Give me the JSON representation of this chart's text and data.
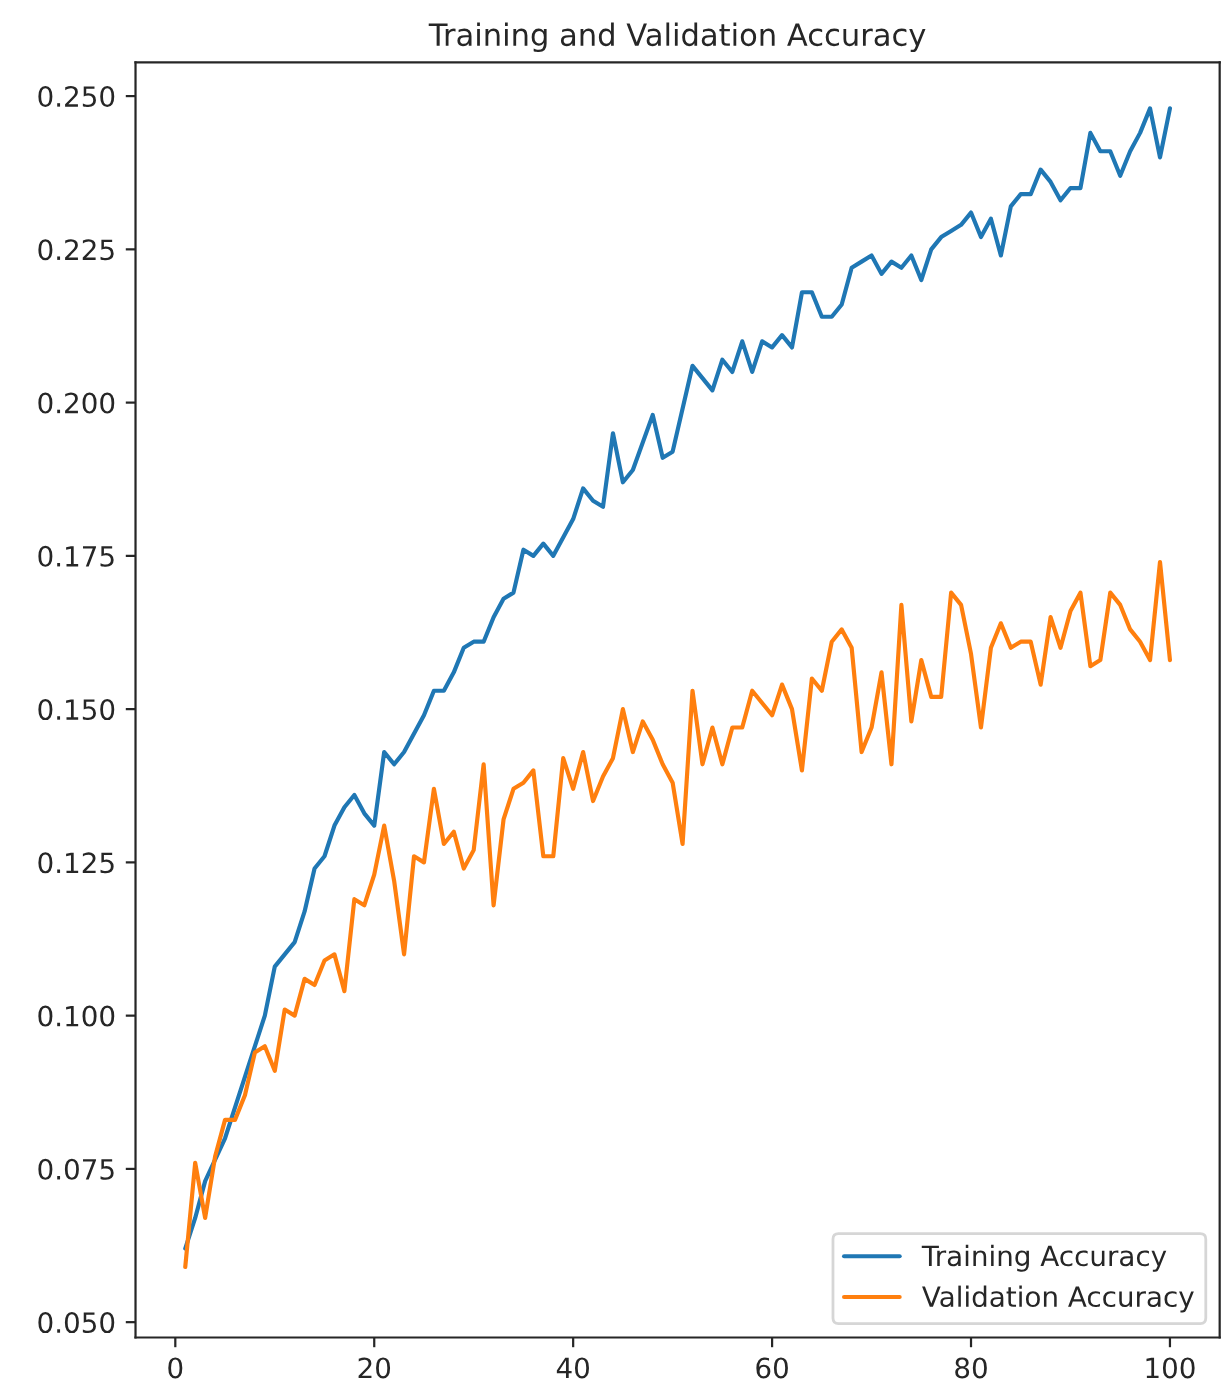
{
  "chart_data": {
    "type": "line",
    "title": "Training and Validation Accuracy",
    "series": [
      {
        "name": "Training Accuracy",
        "color": "#1f77b4",
        "x": [
          1,
          2,
          3,
          5,
          7,
          9,
          10,
          12,
          13,
          14,
          15,
          16,
          17,
          18,
          19,
          20,
          21,
          22,
          23,
          25,
          26,
          27,
          28,
          29,
          30,
          31,
          32,
          33,
          34,
          35,
          36,
          37,
          38,
          40,
          41,
          42,
          43,
          44,
          45,
          46,
          48,
          49,
          50,
          52,
          53,
          54,
          55,
          56,
          57,
          58,
          59,
          60,
          61,
          62,
          63,
          64,
          65,
          66,
          67,
          68,
          69,
          70,
          71,
          72,
          73,
          74,
          75,
          76,
          77,
          78,
          79,
          80,
          81,
          82,
          83,
          84,
          85,
          86,
          87,
          88,
          89,
          90,
          91,
          92,
          93,
          94,
          95,
          96,
          97,
          98,
          99,
          100
        ],
        "values": [
          0.062,
          0.067,
          0.073,
          0.08,
          0.09,
          0.1,
          0.108,
          0.112,
          0.117,
          0.124,
          0.126,
          0.131,
          0.134,
          0.136,
          0.133,
          0.131,
          0.143,
          0.141,
          0.143,
          0.149,
          0.153,
          0.153,
          0.156,
          0.16,
          0.161,
          0.161,
          0.165,
          0.168,
          0.169,
          0.176,
          0.175,
          0.177,
          0.175,
          0.181,
          0.186,
          0.184,
          0.183,
          0.195,
          0.187,
          0.189,
          0.198,
          0.191,
          0.192,
          0.206,
          0.204,
          0.202,
          0.207,
          0.205,
          0.21,
          0.205,
          0.21,
          0.209,
          0.211,
          0.209,
          0.218,
          0.218,
          0.214,
          0.214,
          0.216,
          0.222,
          0.223,
          0.224,
          0.221,
          0.223,
          0.222,
          0.224,
          0.22,
          0.225,
          0.227,
          0.228,
          0.229,
          0.231,
          0.227,
          0.23,
          0.224,
          0.232,
          0.234,
          0.234,
          0.238,
          0.236,
          0.233,
          0.235,
          0.235,
          0.244,
          0.241,
          0.241,
          0.237,
          0.241,
          0.244,
          0.248,
          0.24,
          0.248
        ]
      },
      {
        "name": "Validation Accuracy",
        "color": "#ff7f0e",
        "x": [
          1,
          2,
          3,
          4,
          5,
          6,
          7,
          8,
          9,
          10,
          11,
          12,
          13,
          14,
          15,
          16,
          17,
          18,
          19,
          20,
          21,
          22,
          23,
          24,
          25,
          26,
          27,
          28,
          29,
          30,
          31,
          32,
          33,
          34,
          35,
          36,
          37,
          38,
          39,
          40,
          41,
          42,
          43,
          44,
          45,
          46,
          47,
          48,
          49,
          50,
          51,
          52,
          53,
          54,
          55,
          56,
          57,
          58,
          59,
          60,
          61,
          62,
          63,
          64,
          65,
          66,
          67,
          68,
          69,
          70,
          71,
          72,
          73,
          74,
          75,
          76,
          77,
          78,
          79,
          80,
          81,
          82,
          83,
          84,
          85,
          86,
          87,
          88,
          89,
          90,
          91,
          92,
          93,
          94,
          95,
          96,
          97,
          98,
          99,
          100
        ],
        "values": [
          0.059,
          0.076,
          0.067,
          0.077,
          0.083,
          0.083,
          0.087,
          0.094,
          0.095,
          0.091,
          0.101,
          0.1,
          0.106,
          0.105,
          0.109,
          0.11,
          0.104,
          0.119,
          0.118,
          0.123,
          0.131,
          0.122,
          0.11,
          0.126,
          0.125,
          0.137,
          0.128,
          0.13,
          0.124,
          0.127,
          0.141,
          0.118,
          0.132,
          0.137,
          0.138,
          0.14,
          0.126,
          0.126,
          0.142,
          0.137,
          0.143,
          0.135,
          0.139,
          0.142,
          0.15,
          0.143,
          0.148,
          0.145,
          0.141,
          0.138,
          0.128,
          0.153,
          0.141,
          0.147,
          0.141,
          0.147,
          0.147,
          0.153,
          0.151,
          0.149,
          0.154,
          0.15,
          0.14,
          0.155,
          0.153,
          0.161,
          0.163,
          0.16,
          0.143,
          0.147,
          0.156,
          0.141,
          0.167,
          0.148,
          0.158,
          0.152,
          0.152,
          0.169,
          0.167,
          0.159,
          0.147,
          0.16,
          0.164,
          0.16,
          0.161,
          0.161,
          0.154,
          0.165,
          0.16,
          0.166,
          0.169,
          0.157,
          0.158,
          0.169,
          0.167,
          0.163,
          0.161,
          0.158,
          0.174,
          0.158
        ]
      }
    ],
    "xlim": [
      -4,
      105
    ],
    "xticks": [
      0,
      20,
      40,
      60,
      80,
      100
    ],
    "ylim": [
      0.0475,
      0.2555
    ],
    "yticks": [
      {
        "value": 0.05,
        "label": "0.050"
      },
      {
        "value": 0.075,
        "label": "0.075"
      },
      {
        "value": 0.1,
        "label": "0.100"
      },
      {
        "value": 0.125,
        "label": "0.125"
      },
      {
        "value": 0.15,
        "label": "0.150"
      },
      {
        "value": 0.175,
        "label": "0.175"
      },
      {
        "value": 0.2,
        "label": "0.200"
      },
      {
        "value": 0.225,
        "label": "0.225"
      },
      {
        "value": 0.25,
        "label": "0.250"
      }
    ],
    "legend": "lower right",
    "grid": false,
    "marker": "none",
    "line_style": "solid"
  }
}
